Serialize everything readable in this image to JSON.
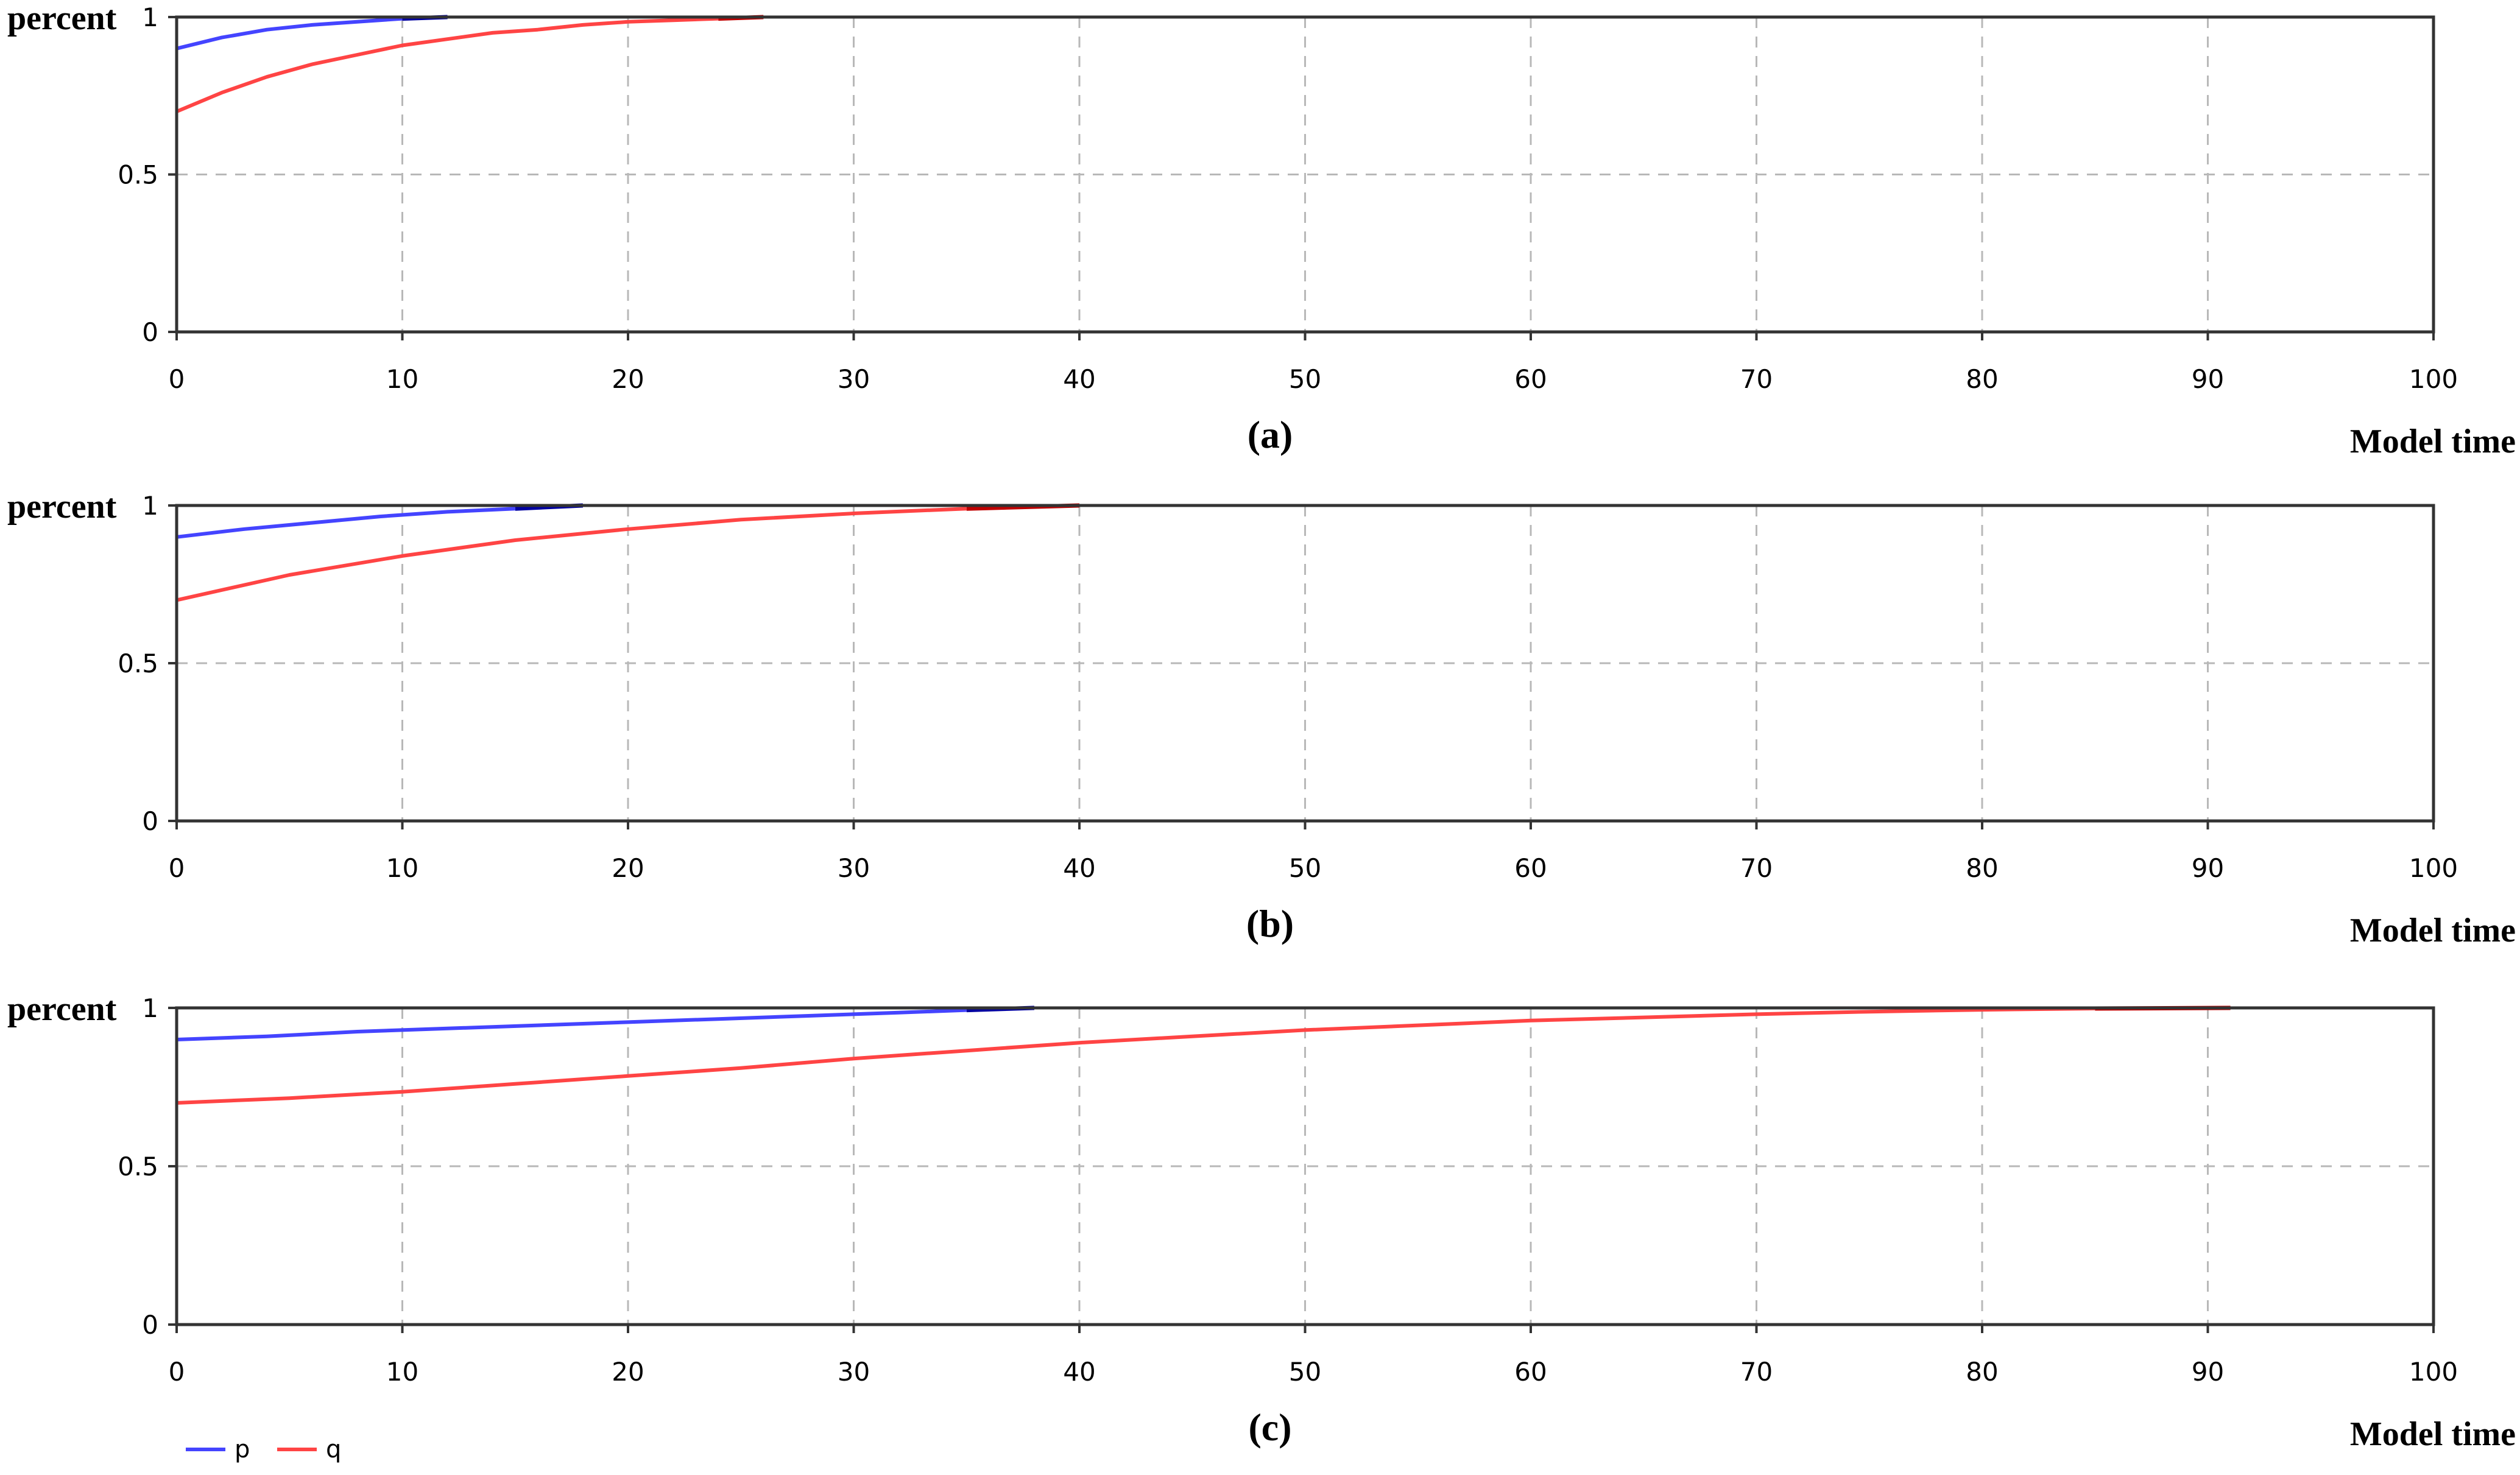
{
  "chart_data": [
    {
      "type": "line",
      "panel_label": "(a)",
      "ylabel": "percent",
      "xlabel": "Model time",
      "xlim": [
        0,
        100
      ],
      "ylim": [
        0,
        1
      ],
      "x_ticks": [
        "0",
        "10",
        "20",
        "30",
        "40",
        "50",
        "60",
        "70",
        "80",
        "90",
        "100"
      ],
      "y_ticks": [
        "0",
        "0.5",
        "1"
      ],
      "grid": true,
      "series": [
        {
          "name": "p",
          "color": "#4444ff",
          "end_color": "#0000a0",
          "x": [
            0,
            2,
            4,
            6,
            8,
            10,
            12
          ],
          "y": [
            0.9,
            0.935,
            0.96,
            0.975,
            0.985,
            0.995,
            1.0
          ]
        },
        {
          "name": "q",
          "color": "#ff4444",
          "end_color": "#c00000",
          "x": [
            0,
            2,
            4,
            6,
            8,
            10,
            12,
            14,
            16,
            18,
            20,
            22,
            24,
            26
          ],
          "y": [
            0.7,
            0.76,
            0.81,
            0.85,
            0.88,
            0.91,
            0.93,
            0.95,
            0.96,
            0.975,
            0.985,
            0.99,
            0.995,
            1.0
          ]
        }
      ]
    },
    {
      "type": "line",
      "panel_label": "(b)",
      "ylabel": "percent",
      "xlabel": "Model time",
      "xlim": [
        0,
        100
      ],
      "ylim": [
        0,
        1
      ],
      "x_ticks": [
        "0",
        "10",
        "20",
        "30",
        "40",
        "50",
        "60",
        "70",
        "80",
        "90",
        "100"
      ],
      "y_ticks": [
        "0",
        "0.5",
        "1"
      ],
      "grid": true,
      "series": [
        {
          "name": "p",
          "color": "#4444ff",
          "end_color": "#0000a0",
          "x": [
            0,
            3,
            6,
            9,
            12,
            15,
            18
          ],
          "y": [
            0.9,
            0.925,
            0.945,
            0.965,
            0.98,
            0.99,
            1.0
          ]
        },
        {
          "name": "q",
          "color": "#ff4444",
          "end_color": "#c00000",
          "x": [
            0,
            5,
            10,
            15,
            20,
            25,
            30,
            35,
            40
          ],
          "y": [
            0.7,
            0.78,
            0.84,
            0.89,
            0.925,
            0.955,
            0.975,
            0.99,
            1.0
          ]
        }
      ]
    },
    {
      "type": "line",
      "panel_label": "(c)",
      "ylabel": "percent",
      "xlabel": "Model time",
      "xlim": [
        0,
        100
      ],
      "ylim": [
        0,
        1
      ],
      "x_ticks": [
        "0",
        "10",
        "20",
        "30",
        "40",
        "50",
        "60",
        "70",
        "80",
        "90",
        "100"
      ],
      "y_ticks": [
        "0",
        "0.5",
        "1"
      ],
      "grid": true,
      "series": [
        {
          "name": "p",
          "color": "#4444ff",
          "end_color": "#0000a0",
          "x": [
            0,
            4,
            8,
            12,
            16,
            20,
            24,
            28,
            32,
            35,
            38
          ],
          "y": [
            0.9,
            0.91,
            0.925,
            0.935,
            0.945,
            0.955,
            0.965,
            0.975,
            0.985,
            0.993,
            1.0
          ]
        },
        {
          "name": "q",
          "color": "#ff4444",
          "end_color": "#c00000",
          "x": [
            0,
            5,
            10,
            15,
            20,
            25,
            30,
            35,
            40,
            45,
            50,
            55,
            60,
            65,
            70,
            75,
            80,
            85,
            91
          ],
          "y": [
            0.7,
            0.715,
            0.735,
            0.76,
            0.785,
            0.81,
            0.84,
            0.865,
            0.89,
            0.91,
            0.93,
            0.945,
            0.96,
            0.97,
            0.98,
            0.988,
            0.994,
            0.998,
            1.0
          ]
        }
      ]
    }
  ],
  "legend": {
    "placement": "bottom-left",
    "items": [
      {
        "label": "p",
        "color": "#4444ff"
      },
      {
        "label": "q",
        "color": "#ff4444"
      }
    ]
  }
}
